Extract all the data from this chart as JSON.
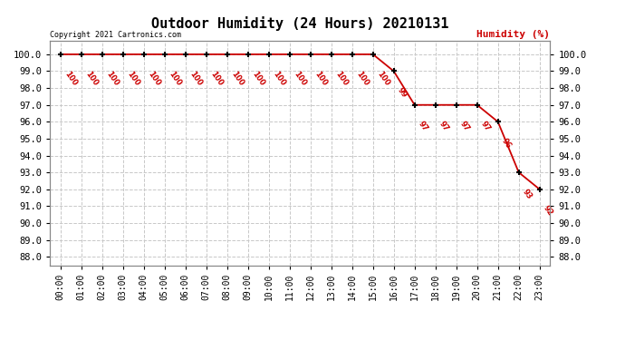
{
  "title": "Outdoor Humidity (24 Hours) 20210131",
  "ylabel": "Humidity (%)",
  "copyright": "Copyright 2021 Cartronics.com",
  "background_color": "#ffffff",
  "plot_bg_color": "#ffffff",
  "line_color": "#cc0000",
  "label_color": "#cc0000",
  "grid_color": "#c8c8c8",
  "ylim": [
    87.5,
    100.8
  ],
  "yticks": [
    88.0,
    89.0,
    90.0,
    91.0,
    92.0,
    93.0,
    94.0,
    95.0,
    96.0,
    97.0,
    98.0,
    99.0,
    100.0
  ],
  "hours": [
    0,
    1,
    2,
    3,
    4,
    5,
    6,
    7,
    8,
    9,
    10,
    11,
    12,
    13,
    14,
    15,
    16,
    17,
    18,
    19,
    20,
    21,
    22,
    23
  ],
  "humidity": [
    100,
    100,
    100,
    100,
    100,
    100,
    100,
    100,
    100,
    100,
    100,
    100,
    100,
    100,
    100,
    100,
    99,
    97,
    97,
    97,
    97,
    96,
    93,
    92
  ],
  "xtick_labels": [
    "00:00",
    "01:00",
    "02:00",
    "03:00",
    "04:00",
    "05:00",
    "06:00",
    "07:00",
    "08:00",
    "09:00",
    "10:00",
    "11:00",
    "12:00",
    "13:00",
    "14:00",
    "15:00",
    "16:00",
    "17:00",
    "18:00",
    "19:00",
    "20:00",
    "21:00",
    "22:00",
    "23:00"
  ]
}
